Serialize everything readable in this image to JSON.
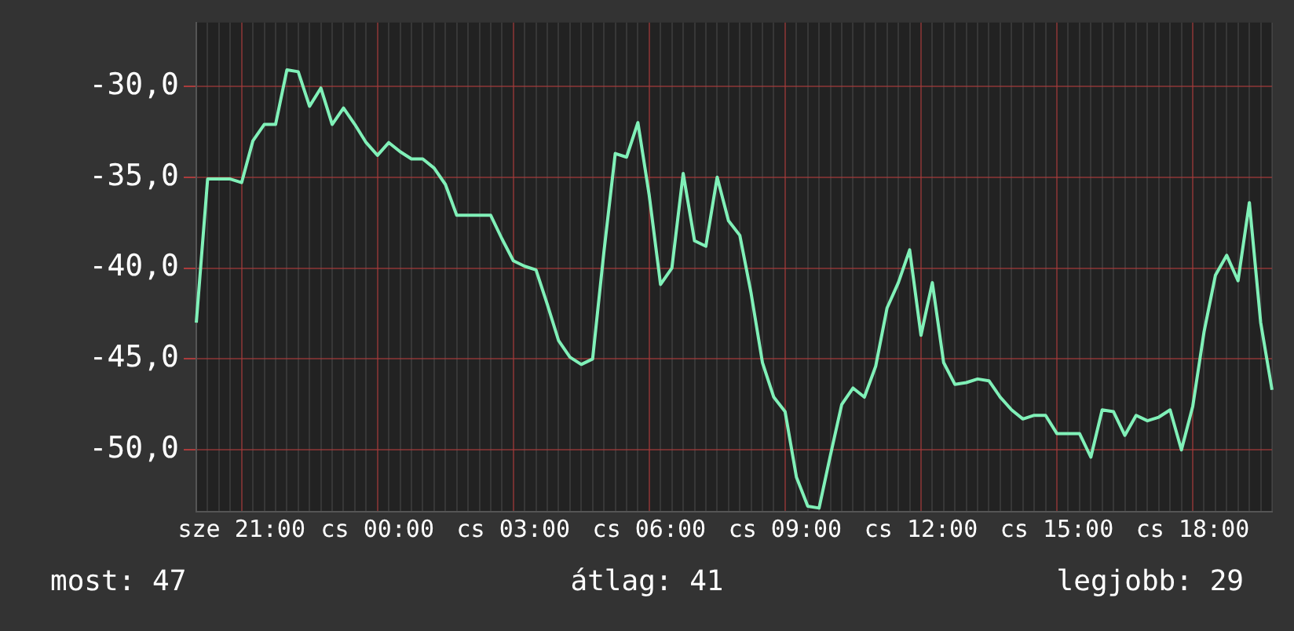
{
  "chart_data": {
    "type": "line",
    "grid": true,
    "marker": "none",
    "line_style": "solid",
    "legend": false,
    "ylim": [
      -53.4,
      -26.5
    ],
    "yticks": [
      {
        "value": -30,
        "label": "-30,0"
      },
      {
        "value": -35,
        "label": "-35,0"
      },
      {
        "value": -40,
        "label": "-40,0"
      },
      {
        "value": -45,
        "label": "-45,0"
      },
      {
        "value": -50,
        "label": "-50,0"
      }
    ],
    "annotations": [
      "most: 47",
      "átlag: 41",
      "legjobb: 29"
    ],
    "categories": [
      null,
      null,
      null,
      null,
      "sze 21:00",
      null,
      null,
      null,
      null,
      null,
      null,
      null,
      null,
      null,
      null,
      null,
      "cs 00:00",
      null,
      null,
      null,
      null,
      null,
      null,
      null,
      null,
      null,
      null,
      null,
      "cs 03:00",
      null,
      null,
      null,
      null,
      null,
      null,
      null,
      null,
      null,
      null,
      null,
      "cs 06:00",
      null,
      null,
      null,
      null,
      null,
      null,
      null,
      null,
      null,
      null,
      null,
      "cs 09:00",
      null,
      null,
      null,
      null,
      null,
      null,
      null,
      null,
      null,
      null,
      null,
      "cs 12:00",
      null,
      null,
      null,
      null,
      null,
      null,
      null,
      null,
      null,
      null,
      null,
      "cs 15:00",
      null,
      null,
      null,
      null,
      null,
      null,
      null,
      null,
      null,
      null,
      null,
      "cs 18:00",
      null,
      null,
      null,
      null,
      null,
      null,
      null
    ],
    "series": [
      {
        "color": "#80f0b8",
        "values": [
          -43,
          -35.1,
          -35.1,
          -35.1,
          -35.3,
          -33,
          -32.1,
          -32.1,
          -29.1,
          -29.2,
          -31.1,
          -30.1,
          -32.1,
          -31.2,
          -32.1,
          -33.1,
          -33.8,
          -33.1,
          -33.6,
          -34,
          -34,
          -34.5,
          -35.4,
          -37.1,
          -37.1,
          -37.1,
          -37.1,
          -38.4,
          -39.6,
          -39.9,
          -40.1,
          -42,
          -44,
          -44.9,
          -45.3,
          -45,
          -39.1,
          -33.7,
          -33.9,
          -32,
          -36,
          -40.9,
          -40,
          -34.8,
          -38.5,
          -38.8,
          -35,
          -37.4,
          -38.2,
          -41.4,
          -45.2,
          -47.1,
          -47.9,
          -51.5,
          -53.1,
          -53.2,
          -50.3,
          -47.5,
          -46.6,
          -47.1,
          -45.4,
          -42.2,
          -40.8,
          -39,
          -43.7,
          -40.8,
          -45.2,
          -46.4,
          -46.3,
          -46.1,
          -46.2,
          -47.1,
          -47.8,
          -48.3,
          -48.1,
          -48.1,
          -49.1,
          -49.1,
          -49.1,
          -50.4,
          -47.8,
          -47.9,
          -49.2,
          -48.1,
          -48.4,
          -48.2,
          -47.8,
          -50,
          -47.6,
          -43.5,
          -40.4,
          -39.3,
          -40.7,
          -36.4,
          -43,
          -46.7
        ]
      }
    ]
  }
}
